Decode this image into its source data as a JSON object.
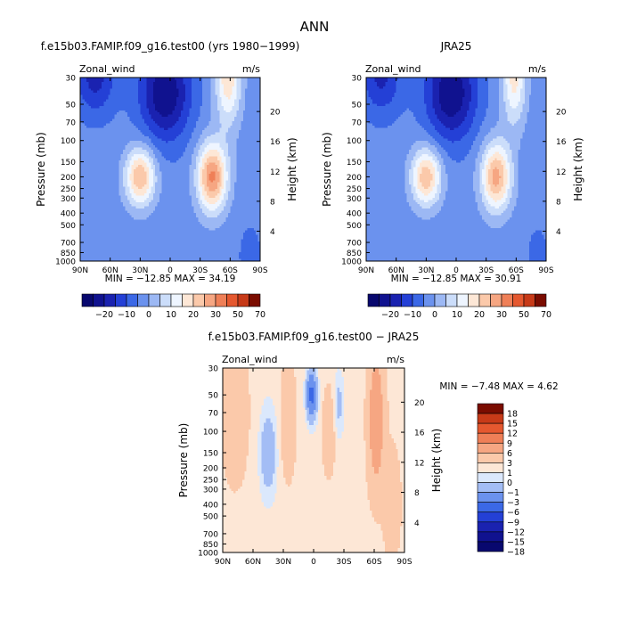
{
  "figure": {
    "title": "ANN"
  },
  "colors": {
    "abs_fills": [
      "#08086e",
      "#10128f",
      "#1a22b0",
      "#2440d6",
      "#3b68e6",
      "#6b92ee",
      "#9cb8f4",
      "#cbddfa",
      "#eef5ff",
      "#fde7d6",
      "#fbc9aa",
      "#f6a682",
      "#ef7f57",
      "#e5582f",
      "#c73a18",
      "#7a0c00"
    ],
    "diff_fills": [
      "#08086e",
      "#10128f",
      "#1a22b0",
      "#2440d6",
      "#3b68e6",
      "#6b92ee",
      "#a3bdf5",
      "#dbe8fc",
      "#fde7d6",
      "#fbc9aa",
      "#f6a682",
      "#ef7f57",
      "#e5582f",
      "#c73a18",
      "#7a0c00"
    ]
  },
  "chart_data": [
    {
      "type": "heatmap",
      "title": "f.e15b03.FAMIP.f09_g16.test00 (yrs 1980−1999)",
      "left_label": "Zonal_wind",
      "right_label": "m/s",
      "ylabel": "Pressure (mb)",
      "y2label": "Height (km)",
      "x_ticks": [
        "90N",
        "60N",
        "30N",
        "0",
        "30S",
        "60S",
        "90S"
      ],
      "x_range": [
        90,
        -90
      ],
      "y_ticks": [
        30,
        50,
        70,
        100,
        150,
        200,
        250,
        300,
        400,
        500,
        700,
        850,
        1000
      ],
      "y_range": [
        30,
        1000
      ],
      "height_ticks": [
        20,
        16,
        12,
        8,
        4
      ],
      "stats": "MIN = −12.85   MAX =  34.19",
      "levels": [
        -25,
        -20,
        -15,
        -10,
        -5,
        0,
        5,
        10,
        15,
        20,
        25,
        30,
        40,
        50,
        60,
        70
      ],
      "colorbar_labels": [
        "−20",
        "−10",
        "0",
        "10",
        "20",
        "30",
        "50",
        "70"
      ],
      "colorbar_label_levels": [
        -20,
        -10,
        0,
        10,
        20,
        30,
        50,
        70
      ],
      "jets": [
        {
          "lat": 30,
          "p": 200,
          "amp": 28,
          "sx": 15,
          "sy": 0.55
        },
        {
          "lat": -42,
          "p": 200,
          "amp": 34,
          "sx": 15,
          "sy": 0.65
        },
        {
          "lat": -58,
          "p": 30,
          "amp": 22,
          "sx": 13,
          "sy": 0.9
        },
        {
          "lat": 75,
          "p": 30,
          "amp": -14,
          "sx": 20,
          "sy": 0.7
        },
        {
          "lat": 5,
          "p": 40,
          "amp": -22,
          "sx": 25,
          "sy": 0.9
        },
        {
          "lat": -80,
          "p": 900,
          "amp": -6,
          "sx": 10,
          "sy": 0.5
        }
      ],
      "background": -3
    },
    {
      "type": "heatmap",
      "title": "JRA25",
      "left_label": "Zonal_wind",
      "right_label": "m/s",
      "ylabel": "Pressure (mb)",
      "y2label": "Height (km)",
      "x_ticks": [
        "90N",
        "60N",
        "30N",
        "0",
        "30S",
        "60S",
        "90S"
      ],
      "x_range": [
        90,
        -90
      ],
      "y_ticks": [
        30,
        50,
        70,
        100,
        150,
        200,
        250,
        300,
        400,
        500,
        700,
        850,
        1000
      ],
      "y_range": [
        30,
        1000
      ],
      "height_ticks": [
        20,
        16,
        12,
        8,
        4
      ],
      "stats": "MIN = −12.85   MAX =  30.91",
      "levels": [
        -25,
        -20,
        -15,
        -10,
        -5,
        0,
        5,
        10,
        15,
        20,
        25,
        30,
        40,
        50,
        60,
        70
      ],
      "colorbar_labels": [
        "−20",
        "−10",
        "0",
        "10",
        "20",
        "30",
        "50",
        "70"
      ],
      "colorbar_label_levels": [
        -20,
        -10,
        0,
        10,
        20,
        30,
        50,
        70
      ],
      "jets": [
        {
          "lat": 30,
          "p": 200,
          "amp": 27,
          "sx": 15,
          "sy": 0.55
        },
        {
          "lat": -40,
          "p": 200,
          "amp": 30,
          "sx": 15,
          "sy": 0.65
        },
        {
          "lat": -58,
          "p": 30,
          "amp": 20,
          "sx": 12,
          "sy": 0.9
        },
        {
          "lat": 75,
          "p": 30,
          "amp": -13,
          "sx": 20,
          "sy": 0.7
        },
        {
          "lat": 5,
          "p": 40,
          "amp": -22,
          "sx": 25,
          "sy": 0.9
        },
        {
          "lat": -82,
          "p": 900,
          "amp": -5,
          "sx": 10,
          "sy": 0.5
        }
      ],
      "background": -3
    },
    {
      "type": "heatmap",
      "title": "f.e15b03.FAMIP.f09_g16.test00 − JRA25",
      "left_label": "Zonal_wind",
      "right_label": "m/s",
      "ylabel": "Pressure (mb)",
      "y2label": "Height (km)",
      "x_ticks": [
        "90N",
        "60N",
        "30N",
        "0",
        "30S",
        "60S",
        "90S"
      ],
      "x_range": [
        90,
        -90
      ],
      "y_ticks": [
        30,
        50,
        70,
        100,
        150,
        200,
        250,
        300,
        400,
        500,
        700,
        850,
        1000
      ],
      "y_range": [
        30,
        1000
      ],
      "height_ticks": [
        20,
        16,
        12,
        8,
        4
      ],
      "stats": "MIN =  −7.48   MAX =   4.62",
      "levels": [
        -18,
        -15,
        -12,
        -9,
        -6,
        -3,
        -1,
        0,
        1,
        3,
        6,
        9,
        12,
        15,
        18
      ],
      "colorbar_labels": [
        "18",
        "15",
        "12",
        "9",
        "6",
        "3",
        "1",
        "0",
        "−1",
        "−3",
        "−6",
        "−9",
        "−12",
        "−15",
        "−18"
      ],
      "jets": [
        {
          "lat": 78,
          "p": 70,
          "amp": 2.5,
          "sx": 12,
          "sy": 1.2
        },
        {
          "lat": 45,
          "p": 150,
          "amp": -3,
          "sx": 8,
          "sy": 0.8
        },
        {
          "lat": 25,
          "p": 80,
          "amp": 2.5,
          "sx": 7,
          "sy": 1.0
        },
        {
          "lat": 2,
          "p": 50,
          "amp": -7.5,
          "sx": 5,
          "sy": 0.45
        },
        {
          "lat": -15,
          "p": 100,
          "amp": 2,
          "sx": 6,
          "sy": 0.8
        },
        {
          "lat": -25,
          "p": 60,
          "amp": -2,
          "sx": 5,
          "sy": 0.6
        },
        {
          "lat": -62,
          "p": 80,
          "amp": 4.6,
          "sx": 8,
          "sy": 1.3
        },
        {
          "lat": -78,
          "p": 400,
          "amp": 2,
          "sx": 8,
          "sy": 1.0
        }
      ],
      "background": 0.5
    }
  ]
}
